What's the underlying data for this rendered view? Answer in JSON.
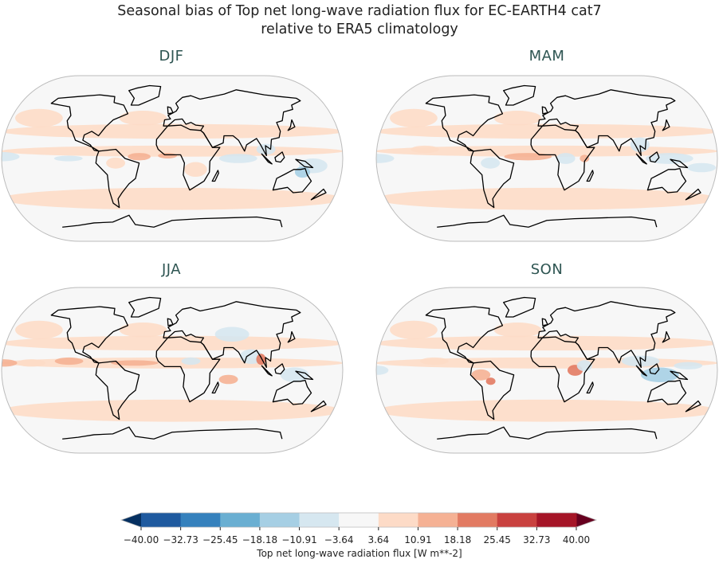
{
  "figure": {
    "title_line1": "Seasonal bias of Top net long-wave radiation flux for EC-EARTH4 cat7",
    "title_line2": "relative to ERA5 climatology"
  },
  "panels": [
    {
      "season": "DJF"
    },
    {
      "season": "MAM"
    },
    {
      "season": "JJA"
    },
    {
      "season": "SON"
    }
  ],
  "chart_data": {
    "type": "heatmap",
    "projection": "Robinson",
    "panels": [
      "DJF",
      "MAM",
      "JJA",
      "SON"
    ],
    "colorbar": {
      "label": "Top net long-wave radiation flux [W m**-2]",
      "ticks": [
        "-40.00",
        "-32.73",
        "-25.45",
        "-18.18",
        "-10.91",
        "-3.64",
        "3.64",
        "10.91",
        "18.18",
        "25.45",
        "32.73",
        "40.00"
      ],
      "range": [
        -40,
        40
      ],
      "extend": "both",
      "colors": [
        "#1f5a9f",
        "#3581bd",
        "#6aafd2",
        "#a6cfe4",
        "#d6e7f0",
        "#f7f7f7",
        "#fddbc7",
        "#f5b194",
        "#e27a62",
        "#c9413f",
        "#a51527"
      ],
      "under_color": "#053061",
      "over_color": "#67001f",
      "placement": "bottom"
    }
  }
}
